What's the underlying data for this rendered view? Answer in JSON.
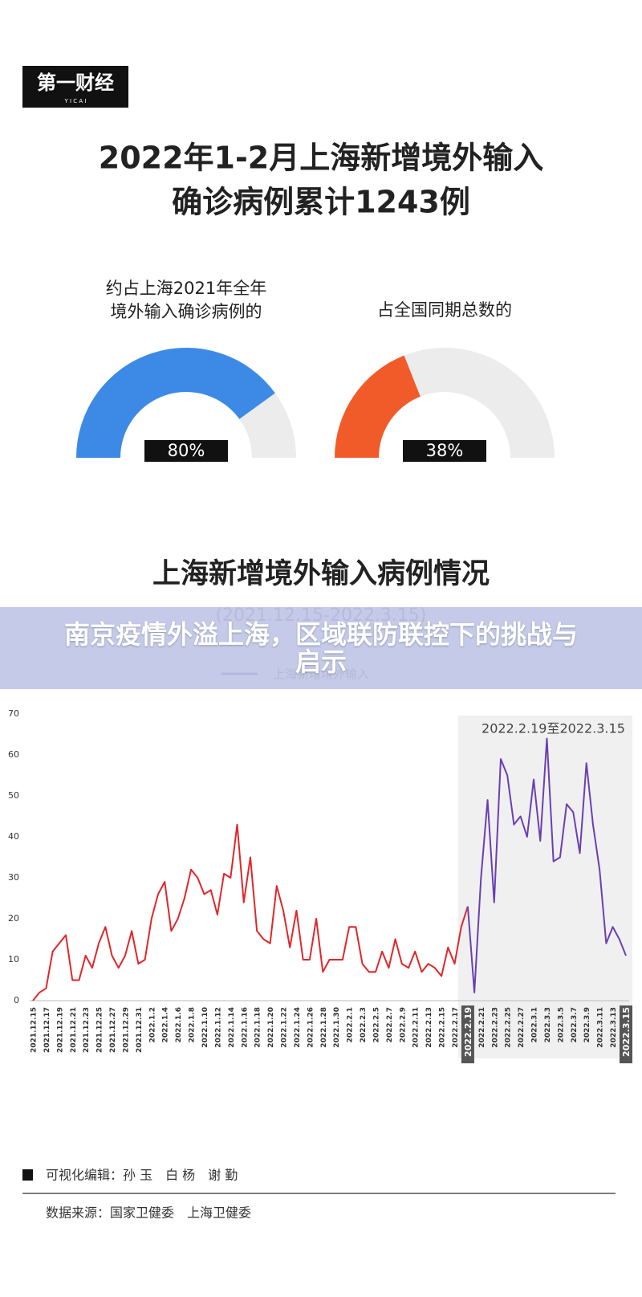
{
  "logo": {
    "text": "第一财经",
    "sub": "Y I C A I"
  },
  "title": [
    "2022年1-2月上海新增境外输入",
    "确诊病例累计1243例"
  ],
  "banner": {
    "title": "南京疫情外溢上海，区域联防联控下的挑战与启示"
  },
  "chart_data": [
    {
      "type": "gauge",
      "title": [
        "约占上海2021年全年",
        "境外输入确诊病例的"
      ],
      "value": 80,
      "value_label": "80%",
      "color": "#3c8ae6",
      "track_color": "#ececec"
    },
    {
      "type": "gauge",
      "title": [
        "占全国同期总数的"
      ],
      "value": 38,
      "value_label": "38%",
      "color": "#f15b2a",
      "track_color": "#ececec"
    },
    {
      "type": "line",
      "title": "上海新增境外输入病例情况",
      "subtitle": "(2021.12.15-2022.3.15)",
      "annotation": "2022.2.19至2022.3.15",
      "categories": [
        "2021.12.15",
        null,
        "2021.12.17",
        null,
        "2021.12.19",
        null,
        "2021.12.21",
        null,
        "2021.12.23",
        null,
        "2021.12.25",
        null,
        "2021.12.27",
        null,
        "2021.12.29",
        null,
        "2021.12.31",
        null,
        "2022.1.2",
        null,
        "2022.1.4",
        null,
        "2022.1.6",
        null,
        "2022.1.8",
        null,
        "2022.1.10",
        null,
        "2022.1.12",
        null,
        "2022.1.14",
        null,
        "2022.1.16",
        null,
        "2022.1.18",
        null,
        "2022.1.20",
        null,
        "2022.1.22",
        null,
        "2022.1.24",
        null,
        "2022.1.26",
        null,
        "2022.1.28",
        null,
        "2022.1.30",
        null,
        "2022.2.1",
        null,
        "2022.2.3",
        null,
        "2022.2.5",
        null,
        "2022.2.7",
        null,
        "2022.2.9",
        null,
        "2022.2.11",
        null,
        "2022.2.13",
        null,
        "2022.2.15",
        null,
        "2022.2.17",
        null,
        "2022.2.19",
        null,
        "2022.2.21",
        null,
        "2022.2.23",
        null,
        "2022.2.25",
        null,
        "2022.2.27",
        null,
        "2022.3.1",
        null,
        "2022.3.3",
        null,
        "2022.3.5",
        null,
        "2022.3.7",
        null,
        "2022.3.9",
        null,
        "2022.3.11",
        null,
        "2022.3.13",
        null,
        "2022.3.15"
      ],
      "series": [
        {
          "name": null,
          "color": "#e0262b",
          "values": [
            0,
            2,
            3,
            12,
            14,
            16,
            5,
            5,
            11,
            8,
            14,
            18,
            11,
            8,
            11,
            17,
            9,
            10,
            20,
            26,
            29,
            17,
            20,
            25,
            32,
            30,
            26,
            27,
            21,
            31,
            30,
            43,
            24,
            35,
            17,
            15,
            14,
            28,
            22,
            13,
            22,
            10,
            10,
            20,
            7,
            10,
            10,
            10,
            18,
            18,
            9,
            7,
            7,
            12,
            8,
            15,
            9,
            8,
            12,
            7,
            9,
            8,
            6,
            13,
            9,
            18,
            23,
            null,
            null,
            null,
            null,
            null,
            null,
            null,
            null,
            null,
            null,
            null,
            null,
            null,
            null,
            null,
            null,
            null,
            null,
            null,
            null,
            null,
            null,
            null,
            null
          ]
        },
        {
          "name": "上海新增境外输入",
          "color": "#6b3fb2",
          "values": [
            null,
            null,
            null,
            null,
            null,
            null,
            null,
            null,
            null,
            null,
            null,
            null,
            null,
            null,
            null,
            null,
            null,
            null,
            null,
            null,
            null,
            null,
            null,
            null,
            null,
            null,
            null,
            null,
            null,
            null,
            null,
            null,
            null,
            null,
            null,
            null,
            null,
            null,
            null,
            null,
            null,
            null,
            null,
            null,
            null,
            null,
            null,
            null,
            null,
            null,
            null,
            null,
            null,
            null,
            null,
            null,
            null,
            null,
            null,
            null,
            null,
            null,
            null,
            null,
            null,
            null,
            23,
            2,
            30,
            49,
            24,
            59,
            55,
            43,
            45,
            40,
            54,
            39,
            64,
            34,
            35,
            48,
            46,
            36,
            58,
            43,
            32,
            14,
            18,
            15,
            11
          ]
        }
      ],
      "ylim": [
        0,
        70
      ],
      "yticks": [
        0,
        10,
        20,
        30,
        40,
        50,
        60,
        70
      ],
      "grid": false,
      "highlight_color": "#f0f0f0"
    }
  ],
  "footer": {
    "editor": "可视化编辑：孙 玉　白 杨　谢 勤",
    "source": "数据来源：国家卫健委　上海卫健委"
  }
}
